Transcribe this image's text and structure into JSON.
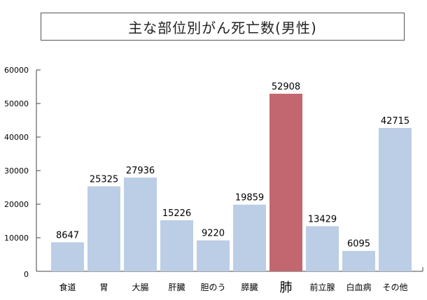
{
  "chart_data": {
    "type": "bar",
    "title": "主な部位別がん死亡数(男性)",
    "xlabel": "",
    "ylabel": "",
    "ylim": [
      0,
      60000
    ],
    "yticks": [
      0,
      10000,
      20000,
      30000,
      40000,
      50000,
      60000
    ],
    "categories": [
      "食道",
      "胃",
      "大腸",
      "肝臓",
      "胆のう",
      "膵臓",
      "肺",
      "前立腺",
      "白血病",
      "その他"
    ],
    "values": [
      8647,
      25325,
      27936,
      15226,
      9220,
      19859,
      52908,
      13429,
      6095,
      42715
    ],
    "highlight_category": "肺",
    "colors": {
      "bar": "#bccde6",
      "highlight": "#c2676f",
      "axis": "#444444"
    }
  }
}
